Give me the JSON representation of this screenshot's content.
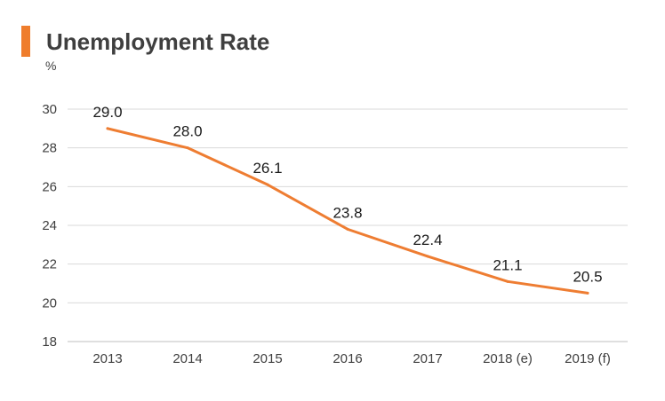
{
  "colors": {
    "accent": "#ef7d2c",
    "line": "#ee7d32",
    "grid": "#d9d9d9",
    "axis": "#bfbfbf"
  },
  "chart_data": {
    "type": "line",
    "title": "Unemployment Rate",
    "ylabel": "%",
    "xlabel": "",
    "categories": [
      "2013",
      "2014",
      "2015",
      "2016",
      "2017",
      "2018 (e)",
      "2019 (f)"
    ],
    "series": [
      {
        "name": "Unemployment Rate",
        "values": [
          29.0,
          28.0,
          26.1,
          23.8,
          22.4,
          21.1,
          20.5
        ]
      }
    ],
    "data_labels": [
      "29.0",
      "28.0",
      "26.1",
      "23.8",
      "22.4",
      "21.1",
      "20.5"
    ],
    "ylim": [
      18,
      30
    ],
    "yticks": [
      18,
      20,
      22,
      24,
      26,
      28,
      30
    ],
    "grid": true,
    "legend": "none"
  }
}
